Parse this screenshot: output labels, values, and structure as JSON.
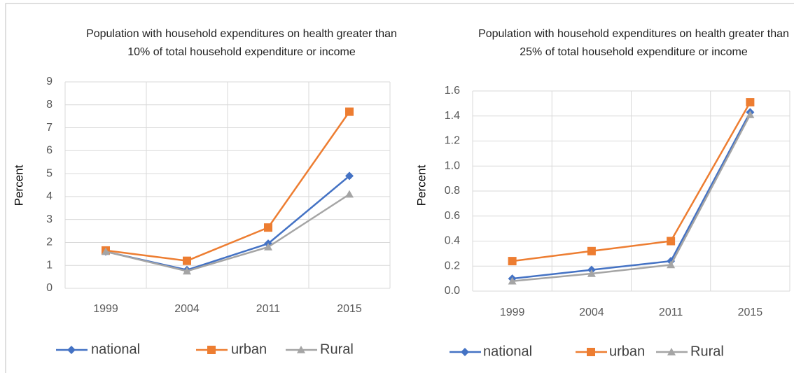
{
  "chart_data": [
    {
      "type": "line",
      "title": "Population with household expenditures on health greater than 10% of total household expenditure or income",
      "y_label": "Percent",
      "categories": [
        "1999",
        "2004",
        "2011",
        "2015"
      ],
      "series": [
        {
          "name": "national",
          "color": "#4472c4",
          "marker": "diamond",
          "values": [
            1.6,
            0.8,
            1.95,
            4.9
          ]
        },
        {
          "name": "urban",
          "color": "#ed7d31",
          "marker": "square",
          "values": [
            1.65,
            1.2,
            2.65,
            7.7
          ]
        },
        {
          "name": "Rural",
          "color": "#a5a5a5",
          "marker": "triangle",
          "values": [
            1.6,
            0.75,
            1.8,
            4.1
          ]
        }
      ],
      "ylim": [
        0,
        9
      ],
      "yticks": [
        0,
        1,
        2,
        3,
        4,
        5,
        6,
        7,
        8,
        9
      ],
      "grid": true,
      "legend": "bottom"
    },
    {
      "type": "line",
      "title": "Population with household expenditures on health greater than 25% of total household expenditure or income",
      "y_label": "Percent",
      "categories": [
        "1999",
        "2004",
        "2011",
        "2015"
      ],
      "series": [
        {
          "name": "national",
          "color": "#4472c4",
          "marker": "diamond",
          "values": [
            0.1,
            0.17,
            0.24,
            1.43
          ]
        },
        {
          "name": "urban",
          "color": "#ed7d31",
          "marker": "square",
          "values": [
            0.24,
            0.32,
            0.4,
            1.51
          ]
        },
        {
          "name": "Rural",
          "color": "#a5a5a5",
          "marker": "triangle",
          "values": [
            0.08,
            0.14,
            0.21,
            1.41
          ]
        }
      ],
      "ylim": [
        0,
        1.6
      ],
      "yticks": [
        {
          "value": 0,
          "label": "0.0"
        },
        0.2,
        0.4,
        0.6,
        0.8,
        {
          "value": 1,
          "label": "1.0"
        },
        1.2,
        1.4,
        1.6
      ],
      "grid": true,
      "legend": "bottom"
    }
  ]
}
